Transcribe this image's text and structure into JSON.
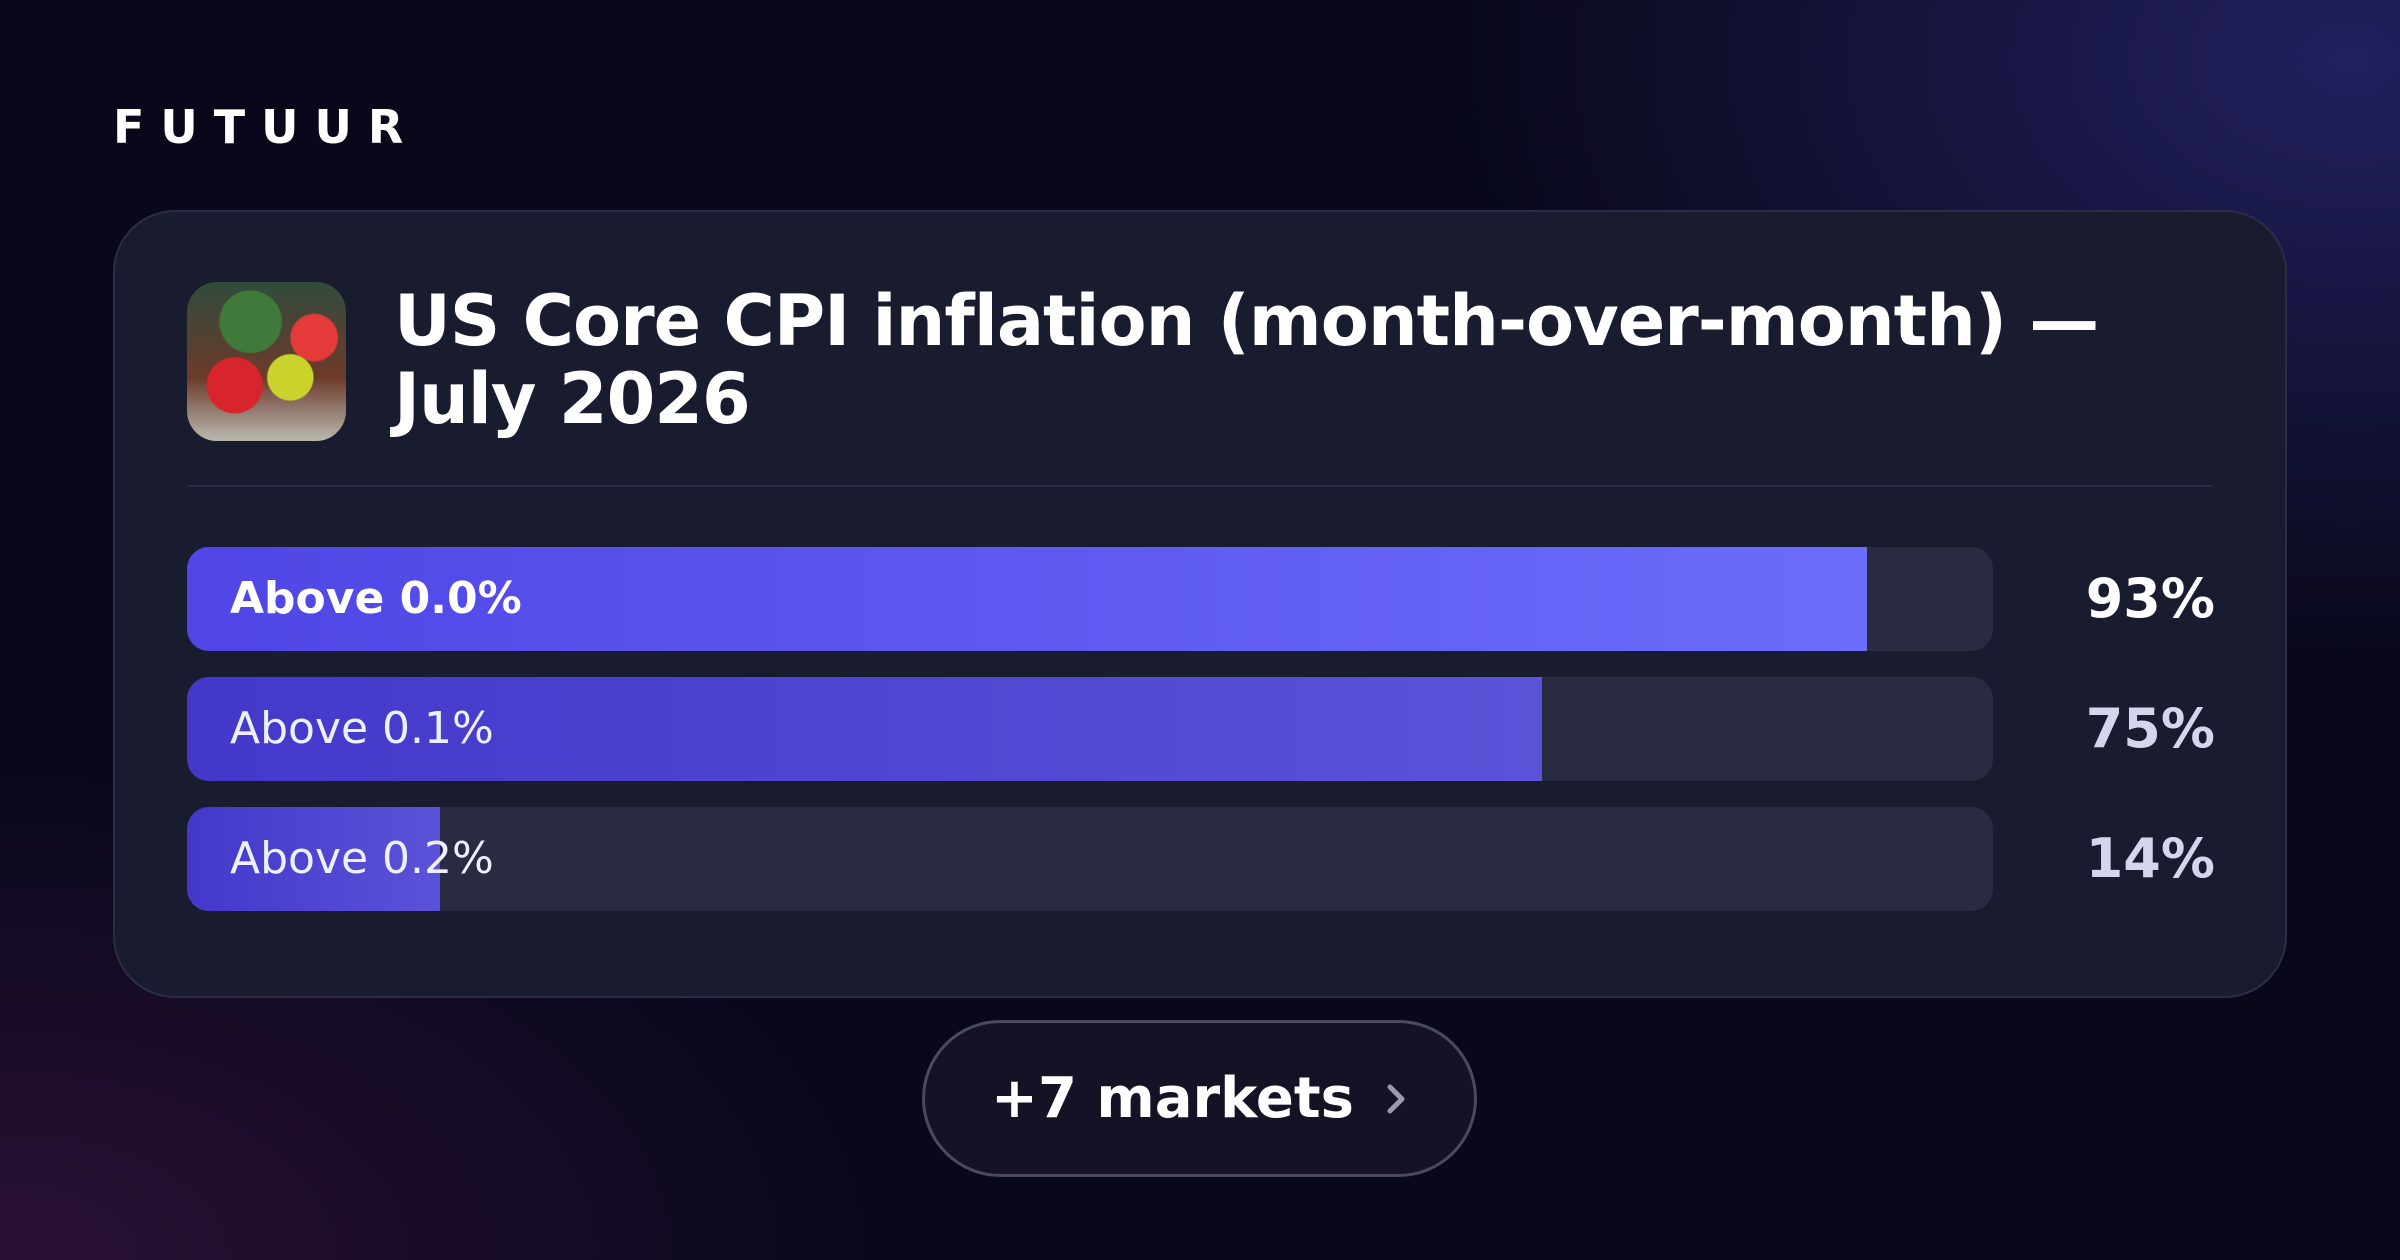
{
  "brand": "FUTUUR",
  "market": {
    "title": "US Core CPI inflation (month-over-month) — July 2026",
    "outcomes": [
      {
        "label": "Above 0.0%",
        "value": 93,
        "value_label": "93%"
      },
      {
        "label": "Above 0.1%",
        "value": 75,
        "value_label": "75%"
      },
      {
        "label": "Above 0.2%",
        "value": 14,
        "value_label": "14%"
      }
    ]
  },
  "more_button": "+7 markets"
}
